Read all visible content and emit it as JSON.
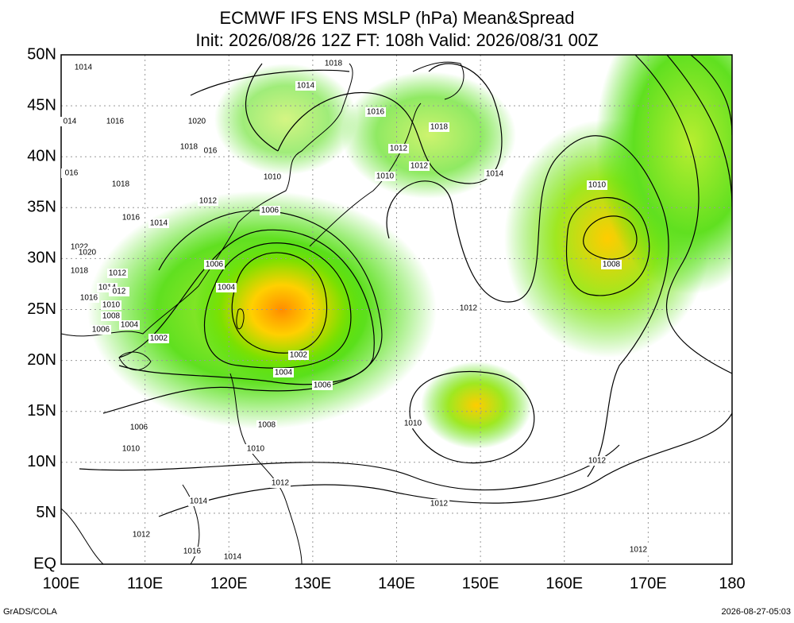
{
  "header": {
    "title": "ECMWF IFS ENS MSLP (hPa) Mean&Spread",
    "subtitle": "Init: 2026/08/26 12Z  FT: 108h  Valid: 2026/08/31 00Z"
  },
  "map": {
    "lat_labels": [
      "50N",
      "45N",
      "40N",
      "35N",
      "30N",
      "25N",
      "20N",
      "15N",
      "10N",
      "5N",
      "EQ"
    ],
    "lon_labels": [
      "100E",
      "110E",
      "120E",
      "130E",
      "140E",
      "150E",
      "160E",
      "170E",
      "180"
    ],
    "contour_labels": [
      "1014",
      "1018",
      "1014",
      "1016",
      "014",
      "1016",
      "1020",
      "1018",
      "1018",
      "016",
      "1012",
      "1012",
      "1014",
      "016",
      "1018",
      "1010",
      "1010",
      "1010",
      "1012",
      "1006",
      "1016",
      "1014",
      "1022",
      "1020",
      "1006",
      "1008",
      "1018",
      "1012",
      "1004",
      "1014",
      "012",
      "1016",
      "1010",
      "1012",
      "1008",
      "1004",
      "1006",
      "1002",
      "1002",
      "1004",
      "1006",
      "1010",
      "1006",
      "1008",
      "1010",
      "1010",
      "1012",
      "1012",
      "1014",
      "1012",
      "1012",
      "1016",
      "1014",
      "1012"
    ]
  },
  "footer": {
    "left": "GrADS/COLA",
    "right": "2026-08-27-05:03"
  }
}
